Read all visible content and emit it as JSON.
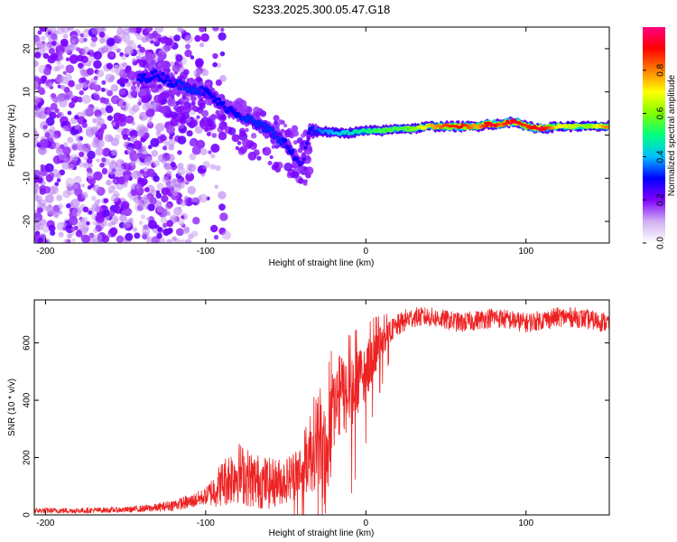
{
  "figure_title": "S233.2025.300.05.47.G18",
  "chart_data": [
    {
      "type": "heatmap",
      "title": "S233.2025.300.05.47.G18",
      "xlabel": "Height of straight line (km)",
      "ylabel": "Frequency (Hz)",
      "xlim": [
        -207,
        152
      ],
      "ylim": [
        -25,
        25
      ],
      "xticks": [
        -200,
        -100,
        0,
        100
      ],
      "xtick_labels": [
        "-200",
        "-100",
        "0",
        "100"
      ],
      "yticks": [
        -20,
        -10,
        0,
        10,
        20
      ],
      "ytick_labels": [
        "-20",
        "-10",
        "0",
        "10",
        "20"
      ],
      "ridge": {
        "x": [
          -140,
          -130,
          -120,
          -110,
          -100,
          -90,
          -80,
          -70,
          -60,
          -50,
          -45,
          -40,
          -35,
          -30,
          -20,
          -10,
          0,
          10,
          20,
          30,
          40,
          50,
          60,
          70,
          75,
          80,
          85,
          90,
          95,
          100,
          110,
          120,
          130,
          140,
          150
        ],
        "y": [
          13,
          14,
          12,
          11,
          10,
          7,
          5,
          3,
          1,
          -2,
          -5,
          -7,
          1,
          1,
          0.5,
          0.5,
          1,
          1,
          1.5,
          1.5,
          2,
          2,
          2,
          2,
          2.5,
          2.5,
          2.5,
          3,
          3,
          2,
          1.5,
          2,
          2,
          2,
          2
        ],
        "amplitude": [
          0.3,
          0.3,
          0.3,
          0.35,
          0.3,
          0.3,
          0.3,
          0.35,
          0.35,
          0.3,
          0.3,
          0.25,
          0.3,
          0.35,
          0.4,
          0.45,
          0.5,
          0.55,
          0.55,
          0.6,
          0.75,
          0.85,
          0.9,
          0.75,
          0.9,
          0.95,
          0.8,
          0.95,
          0.9,
          0.85,
          0.95,
          0.7,
          0.65,
          0.6,
          0.8
        ]
      },
      "noise_region_km": [
        -207,
        -95
      ]
    },
    {
      "type": "line",
      "xlabel": "Height of straight line (km)",
      "ylabel": "SNR (10 * v/v)",
      "xlim": [
        -207,
        152
      ],
      "ylim": [
        0,
        750
      ],
      "xticks": [
        -200,
        -100,
        0,
        100
      ],
      "xtick_labels": [
        "-200",
        "-100",
        "0",
        "100"
      ],
      "yticks": [
        0,
        200,
        400,
        600
      ],
      "ytick_labels": [
        "0",
        "200",
        "400",
        "600"
      ],
      "series": [
        {
          "name": "SNR",
          "color": "#ee2222",
          "x": [
            -207,
            -180,
            -150,
            -130,
            -120,
            -110,
            -100,
            -95,
            -90,
            -85,
            -80,
            -70,
            -60,
            -50,
            -45,
            -40,
            -35,
            -30,
            -28,
            -25,
            -20,
            -15,
            -10,
            -5,
            0,
            5,
            10,
            15,
            20,
            25,
            30,
            40,
            50,
            60,
            70,
            80,
            90,
            100,
            110,
            120,
            130,
            140,
            152
          ],
          "y": [
            15,
            15,
            18,
            25,
            35,
            45,
            65,
            85,
            110,
            130,
            150,
            120,
            110,
            120,
            140,
            160,
            220,
            280,
            300,
            150,
            380,
            430,
            400,
            460,
            500,
            560,
            600,
            640,
            660,
            680,
            690,
            690,
            680,
            670,
            680,
            690,
            680,
            670,
            680,
            690,
            690,
            680,
            670
          ],
          "noise_amplitude": [
            10,
            10,
            10,
            15,
            20,
            25,
            30,
            60,
            80,
            100,
            110,
            100,
            90,
            80,
            90,
            100,
            150,
            180,
            200,
            200,
            150,
            140,
            140,
            120,
            100,
            80,
            60,
            40,
            40,
            40,
            35,
            35,
            35,
            35,
            35,
            35,
            35,
            35,
            35,
            35,
            35,
            35,
            35
          ]
        }
      ]
    }
  ],
  "colorbar": {
    "label": "Normalized spectral amplitude",
    "range": [
      0,
      1
    ],
    "ticks": [
      0.0,
      0.2,
      0.4,
      0.6,
      0.8
    ],
    "tick_labels": [
      "0.0",
      "0.2",
      "0.4",
      "0.6",
      "0.8"
    ],
    "colors": [
      "#ffffff",
      "#d0b0f0",
      "#8000ff",
      "#0000ff",
      "#00c0ff",
      "#00ff80",
      "#80ff00",
      "#ffff00",
      "#ff8000",
      "#ff0000",
      "#ff0080"
    ]
  }
}
